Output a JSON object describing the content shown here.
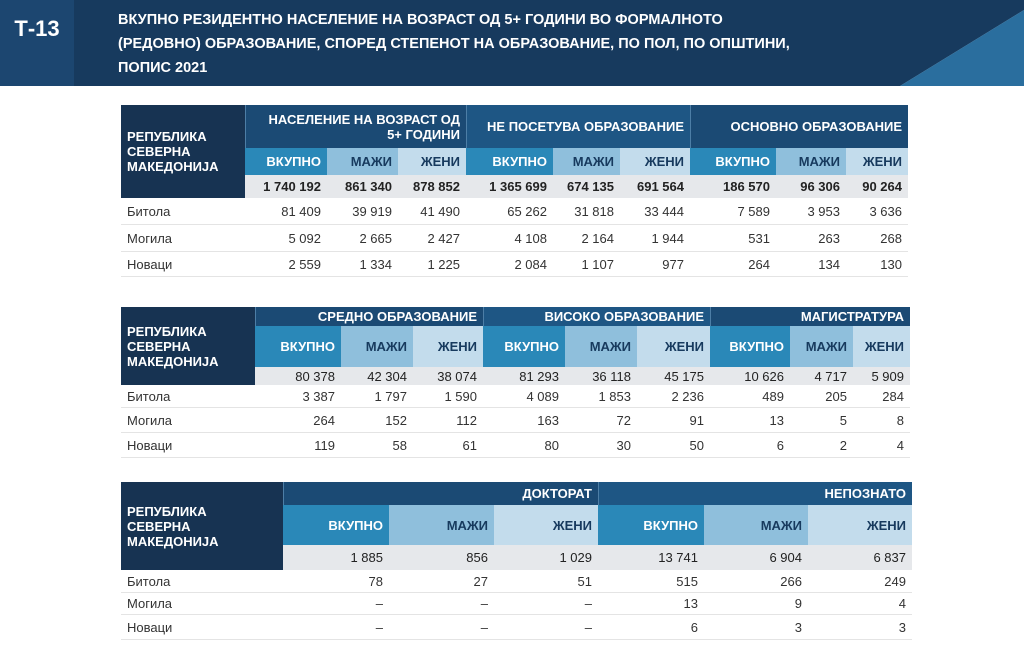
{
  "header": {
    "code": "Т-13",
    "title_lines": [
      "ВКУПНО РЕЗИДЕНТНО НАСЕЛЕНИЕ НА ВОЗРАСТ ОД 5+ ГОДИНИ ВО ФОРМАЛНОТО",
      "(РЕДОВНО) ОБРАЗОВАНИЕ, СПОРЕД СТЕПЕНОТ НА ОБРАЗОВАНИЕ, ПО ПОЛ, ПО ОПШТИНИ,",
      "ПОПИС 2021"
    ]
  },
  "tables": [
    {
      "corner": [
        "РЕПУБЛИКА",
        "СЕВЕРНА",
        "МАКЕДОНИЈА"
      ],
      "groups": [
        "НАСЕЛЕНИЕ НА ВОЗРАСТ ОД 5+ ГОДИНИ",
        "НЕ ПОСЕТУВА ОБРАЗОВАНИЕ",
        "ОСНОВНО ОБРАЗОВАНИЕ"
      ],
      "subheaders": [
        "ВКУПНО",
        "МАЖИ",
        "ЖЕНИ",
        "ВКУПНО",
        "МАЖИ",
        "ЖЕНИ",
        "ВКУПНО",
        "МАЖИ",
        "ЖЕНИ"
      ],
      "total": [
        "1 740 192",
        "861 340",
        "878 852",
        "1 365 699",
        "674 135",
        "691 564",
        "186 570",
        "96 306",
        "90 264"
      ],
      "rows": [
        {
          "label": "Битола",
          "values": [
            "81 409",
            "39 919",
            "41 490",
            "65 262",
            "31 818",
            "33 444",
            "7 589",
            "3 953",
            "3 636"
          ]
        },
        {
          "label": "Могила",
          "values": [
            "5 092",
            "2 665",
            "2 427",
            "4 108",
            "2 164",
            "1 944",
            "531",
            "263",
            "268"
          ]
        },
        {
          "label": "Новаци",
          "values": [
            "2 559",
            "1 334",
            "1 225",
            "2 084",
            "1 107",
            "977",
            "264",
            "134",
            "130"
          ]
        }
      ]
    },
    {
      "corner": [
        "РЕПУБЛИКА",
        "СЕВЕРНА",
        "МАКЕДОНИЈА"
      ],
      "groups": [
        "СРЕДНО ОБРАЗОВАНИЕ",
        "ВИСОКО ОБРАЗОВАНИЕ",
        "МАГИСТРАТУРА"
      ],
      "subheaders": [
        "ВКУПНО",
        "МАЖИ",
        "ЖЕНИ",
        "ВКУПНО",
        "МАЖИ",
        "ЖЕНИ",
        "ВКУПНО",
        "МАЖИ",
        "ЖЕНИ"
      ],
      "total": [
        "80 378",
        "42 304",
        "38 074",
        "81 293",
        "36 118",
        "45 175",
        "10 626",
        "4 717",
        "5 909"
      ],
      "rows": [
        {
          "label": "Битола",
          "values": [
            "3 387",
            "1 797",
            "1 590",
            "4 089",
            "1 853",
            "2 236",
            "489",
            "205",
            "284"
          ]
        },
        {
          "label": "Могила",
          "values": [
            "264",
            "152",
            "112",
            "163",
            "72",
            "91",
            "13",
            "5",
            "8"
          ]
        },
        {
          "label": "Новаци",
          "values": [
            "119",
            "58",
            "61",
            "80",
            "30",
            "50",
            "6",
            "2",
            "4"
          ]
        }
      ]
    },
    {
      "corner": [
        "РЕПУБЛИКА",
        "СЕВЕРНА",
        "МАКЕДОНИЈА"
      ],
      "groups": [
        "ДОКТОРАТ",
        "НЕПОЗНАТО"
      ],
      "subheaders": [
        "ВКУПНО",
        "МАЖИ",
        "ЖЕНИ",
        "ВКУПНО",
        "МАЖИ",
        "ЖЕНИ"
      ],
      "total": [
        "1 885",
        "856",
        "1 029",
        "13 741",
        "6 904",
        "6 837"
      ],
      "rows": [
        {
          "label": "Битола",
          "values": [
            "78",
            "27",
            "51",
            "515",
            "266",
            "249"
          ]
        },
        {
          "label": "Могила",
          "values": [
            "–",
            "–",
            "–",
            "13",
            "9",
            "4"
          ]
        },
        {
          "label": "Новаци",
          "values": [
            "–",
            "–",
            "–",
            "6",
            "3",
            "3"
          ]
        }
      ]
    }
  ]
}
